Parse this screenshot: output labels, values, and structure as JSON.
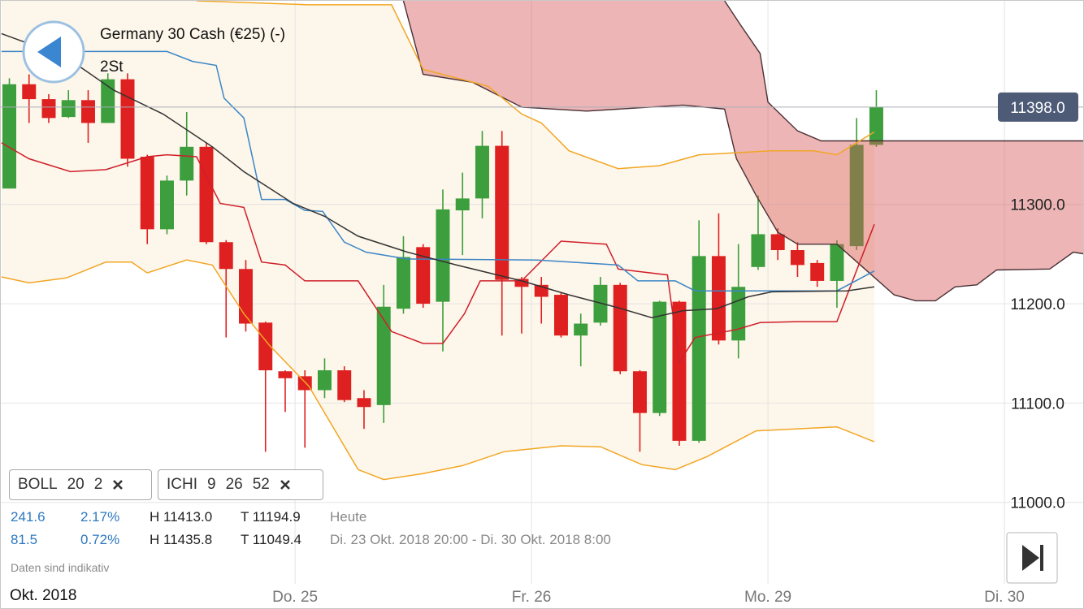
{
  "header": {
    "title": "Germany 30 Cash (€25) (-)",
    "interval": "2St"
  },
  "indicators": [
    {
      "name": "BOLL",
      "params": [
        "20",
        "2"
      ]
    },
    {
      "name": "ICHI",
      "params": [
        "9",
        "26",
        "52"
      ]
    }
  ],
  "stats": {
    "rows": [
      [
        "241.6",
        "2.17%",
        "H 11413.0",
        "T 11194.9",
        "Heute"
      ],
      [
        "81.5",
        "0.72%",
        "H 11435.8",
        "T 11049.4",
        "Di. 23 Okt. 2018 20:00 - Di. 30 Okt. 2018 8:00"
      ]
    ]
  },
  "footnote": "Daten sind indikativ",
  "chart_data": {
    "type": "candlestick",
    "x_period": "Okt. 2018",
    "x": [
      0,
      1,
      2,
      3,
      4,
      5,
      6,
      7,
      8,
      9,
      10,
      11,
      12,
      13,
      14,
      15,
      16,
      17,
      18,
      19,
      20,
      21,
      22,
      23,
      24,
      25,
      26,
      27,
      28,
      29,
      30,
      31,
      32,
      33,
      34,
      35,
      36,
      37,
      38,
      39,
      40,
      41,
      42,
      43,
      44
    ],
    "open": [
      11316,
      11421,
      11406,
      11388,
      11405,
      11382,
      11426,
      11348,
      11275,
      11324,
      11358,
      11262,
      11235,
      11181,
      11132,
      11127,
      11113,
      11133,
      11105,
      11098,
      11195,
      11257,
      11202,
      11294,
      11306,
      11359,
      11225,
      11219,
      11209,
      11168,
      11181,
      11219,
      11132,
      11090,
      11202,
      11062,
      11248,
      11163,
      11237,
      11270,
      11254,
      11241,
      11223,
      11258,
      11360
    ],
    "high": [
      11427,
      11431,
      11411,
      11415,
      11415,
      11432,
      11432,
      11350,
      11329,
      11393,
      11362,
      11264,
      11244,
      11182,
      11133,
      11133,
      11145,
      11137,
      11113,
      11219,
      11268,
      11260,
      11315,
      11332,
      11374,
      11374,
      11227,
      11227,
      11211,
      11190,
      11227,
      11221,
      11133,
      11203,
      11203,
      11284,
      11291,
      11260,
      11309,
      11276,
      11262,
      11244,
      11264,
      11387,
      11415
    ],
    "low": [
      11316,
      11382,
      11382,
      11387,
      11362,
      11382,
      11338,
      11260,
      11270,
      11309,
      11260,
      11166,
      11172,
      11051,
      11091,
      11055,
      11105,
      11101,
      11074,
      11080,
      11190,
      11196,
      11152,
      11249,
      11286,
      11168,
      11170,
      11180,
      11166,
      11137,
      11178,
      11129,
      11051,
      11087,
      11057,
      11060,
      11159,
      11145,
      11234,
      11244,
      11227,
      11217,
      11196,
      11254,
      11358
    ],
    "close": [
      11421,
      11406,
      11387,
      11405,
      11382,
      11426,
      11346,
      11275,
      11324,
      11358,
      11262,
      11235,
      11180,
      11133,
      11125,
      11113,
      11133,
      11103,
      11096,
      11197,
      11247,
      11200,
      11295,
      11306,
      11359,
      11224,
      11217,
      11207,
      11168,
      11180,
      11219,
      11132,
      11090,
      11202,
      11062,
      11248,
      11163,
      11217,
      11270,
      11254,
      11239,
      11223,
      11260,
      11360,
      11398
    ],
    "up_color": "#3c9e3c",
    "down_color": "#df2020",
    "band_color": "#fdf6ea",
    "lines": [
      {
        "color": "#f2a623",
        "x": [
          9.5,
          15.2,
          19.4,
          21,
          24.3,
          26,
          27,
          28.4,
          30.9,
          33,
          35,
          38.7,
          40.8,
          42,
          43.9
        ],
        "values": [
          11505,
          11501,
          11501,
          11436,
          11419,
          11391,
          11382,
          11354,
          11336,
          11339,
          11350,
          11354,
          11354,
          11350,
          11373
        ]
      },
      {
        "color": "#f2a623",
        "x": [
          -0.4,
          1,
          2.9,
          4.9,
          6.2,
          7,
          9,
          10.3,
          11.9,
          13.2,
          15.2,
          17.7,
          19,
          21,
          23,
          25.1,
          28,
          30,
          32.1,
          33.8,
          35.4,
          37.9,
          42,
          43.9
        ],
        "values": [
          11227,
          11221,
          11226,
          11242,
          11242,
          11231,
          11244,
          11239,
          11190,
          11158,
          11117,
          11033,
          11023,
          11029,
          11037,
          11051,
          11057,
          11056,
          11038,
          11033,
          11046,
          11072,
          11076,
          11061
        ]
      },
      {
        "color": "#cf1f2a",
        "x": [
          -0.4,
          1,
          3.1,
          4.9,
          7,
          8,
          9.5,
          10.7,
          11.9,
          12.8,
          14,
          15,
          17.7,
          19.4,
          21,
          22,
          23.1,
          23.9,
          26,
          28,
          30.3,
          30.9,
          33.4,
          34,
          34.8,
          36.9,
          38.1,
          40,
          42,
          43.9
        ],
        "values": [
          11362,
          11346,
          11333,
          11335,
          11348,
          11350,
          11348,
          11301,
          11297,
          11242,
          11239,
          11223,
          11223,
          11172,
          11160,
          11160,
          11190,
          11223,
          11223,
          11263,
          11260,
          11235,
          11229,
          11141,
          11166,
          11174,
          11181,
          11182,
          11182,
          11280
        ]
      },
      {
        "color": "#3b86c6",
        "x": [
          -0.4,
          8,
          9.3,
          10.5,
          10.9,
          11.9,
          12.8,
          14,
          15,
          15.9,
          17,
          18.1,
          20.2,
          26.8,
          30.9,
          31.9,
          33.8,
          34.8,
          42,
          43.9
        ],
        "values": [
          11454,
          11454,
          11444,
          11440,
          11407,
          11387,
          11305,
          11305,
          11294,
          11293,
          11262,
          11252,
          11245,
          11244,
          11239,
          11223,
          11223,
          11213,
          11213,
          11233
        ]
      },
      {
        "color": "#333333",
        "x": [
          -0.4,
          2.9,
          5.3,
          7.8,
          10.3,
          11.9,
          14.4,
          16,
          17.7,
          20.2,
          22.7,
          26,
          28.4,
          30.9,
          32.6,
          34.2,
          35.9,
          37.5,
          38.7,
          42.5,
          43.9
        ],
        "values": [
          11472,
          11448,
          11415,
          11391,
          11358,
          11333,
          11301,
          11288,
          11268,
          11252,
          11239,
          11223,
          11209,
          11196,
          11186,
          11193,
          11195,
          11207,
          11212,
          11213,
          11217
        ]
      }
    ],
    "cloud": {
      "color": "#d65a5a",
      "opacity": 0.45,
      "line_color": "#4a3036",
      "span_a": {
        "x": [
          20,
          21,
          23.5,
          26,
          29.3,
          34.2,
          36.3,
          36.9,
          37.9,
          39,
          40,
          42,
          42.9,
          44.9,
          46,
          47,
          48,
          49.1,
          50.1,
          52.8,
          54,
          54.6
        ],
        "values": [
          11505,
          11431,
          11423,
          11398,
          11394,
          11400,
          11396,
          11346,
          11309,
          11272,
          11260,
          11260,
          11244,
          11209,
          11203,
          11203,
          11217,
          11219,
          11234,
          11235,
          11252,
          11250
        ]
      },
      "span_b": {
        "x": [
          36.3,
          37.1,
          38.1,
          38.5,
          40,
          41.2,
          54.6
        ],
        "values": [
          11505,
          11481,
          11452,
          11403,
          11374,
          11364,
          11364
        ]
      }
    },
    "last": {
      "value": 11398,
      "label": "11398.0"
    },
    "xlim": [
      -0.433,
      54.58
    ],
    "ylim": [
      10918,
      11505
    ],
    "xticks": [
      {
        "value": 14.5,
        "label": "Do. 25"
      },
      {
        "value": 26.5,
        "label": "Fr. 26"
      },
      {
        "value": 38.5,
        "label": "Mo. 29"
      },
      {
        "value": 50.5,
        "label": "Di. 30"
      }
    ],
    "yticks": [
      {
        "value": 11000,
        "label": "11000.0"
      },
      {
        "value": 11100,
        "label": "11100.0"
      },
      {
        "value": 11200,
        "label": "11200.0"
      },
      {
        "value": 11300,
        "label": "11300.0"
      }
    ],
    "grid": true
  }
}
